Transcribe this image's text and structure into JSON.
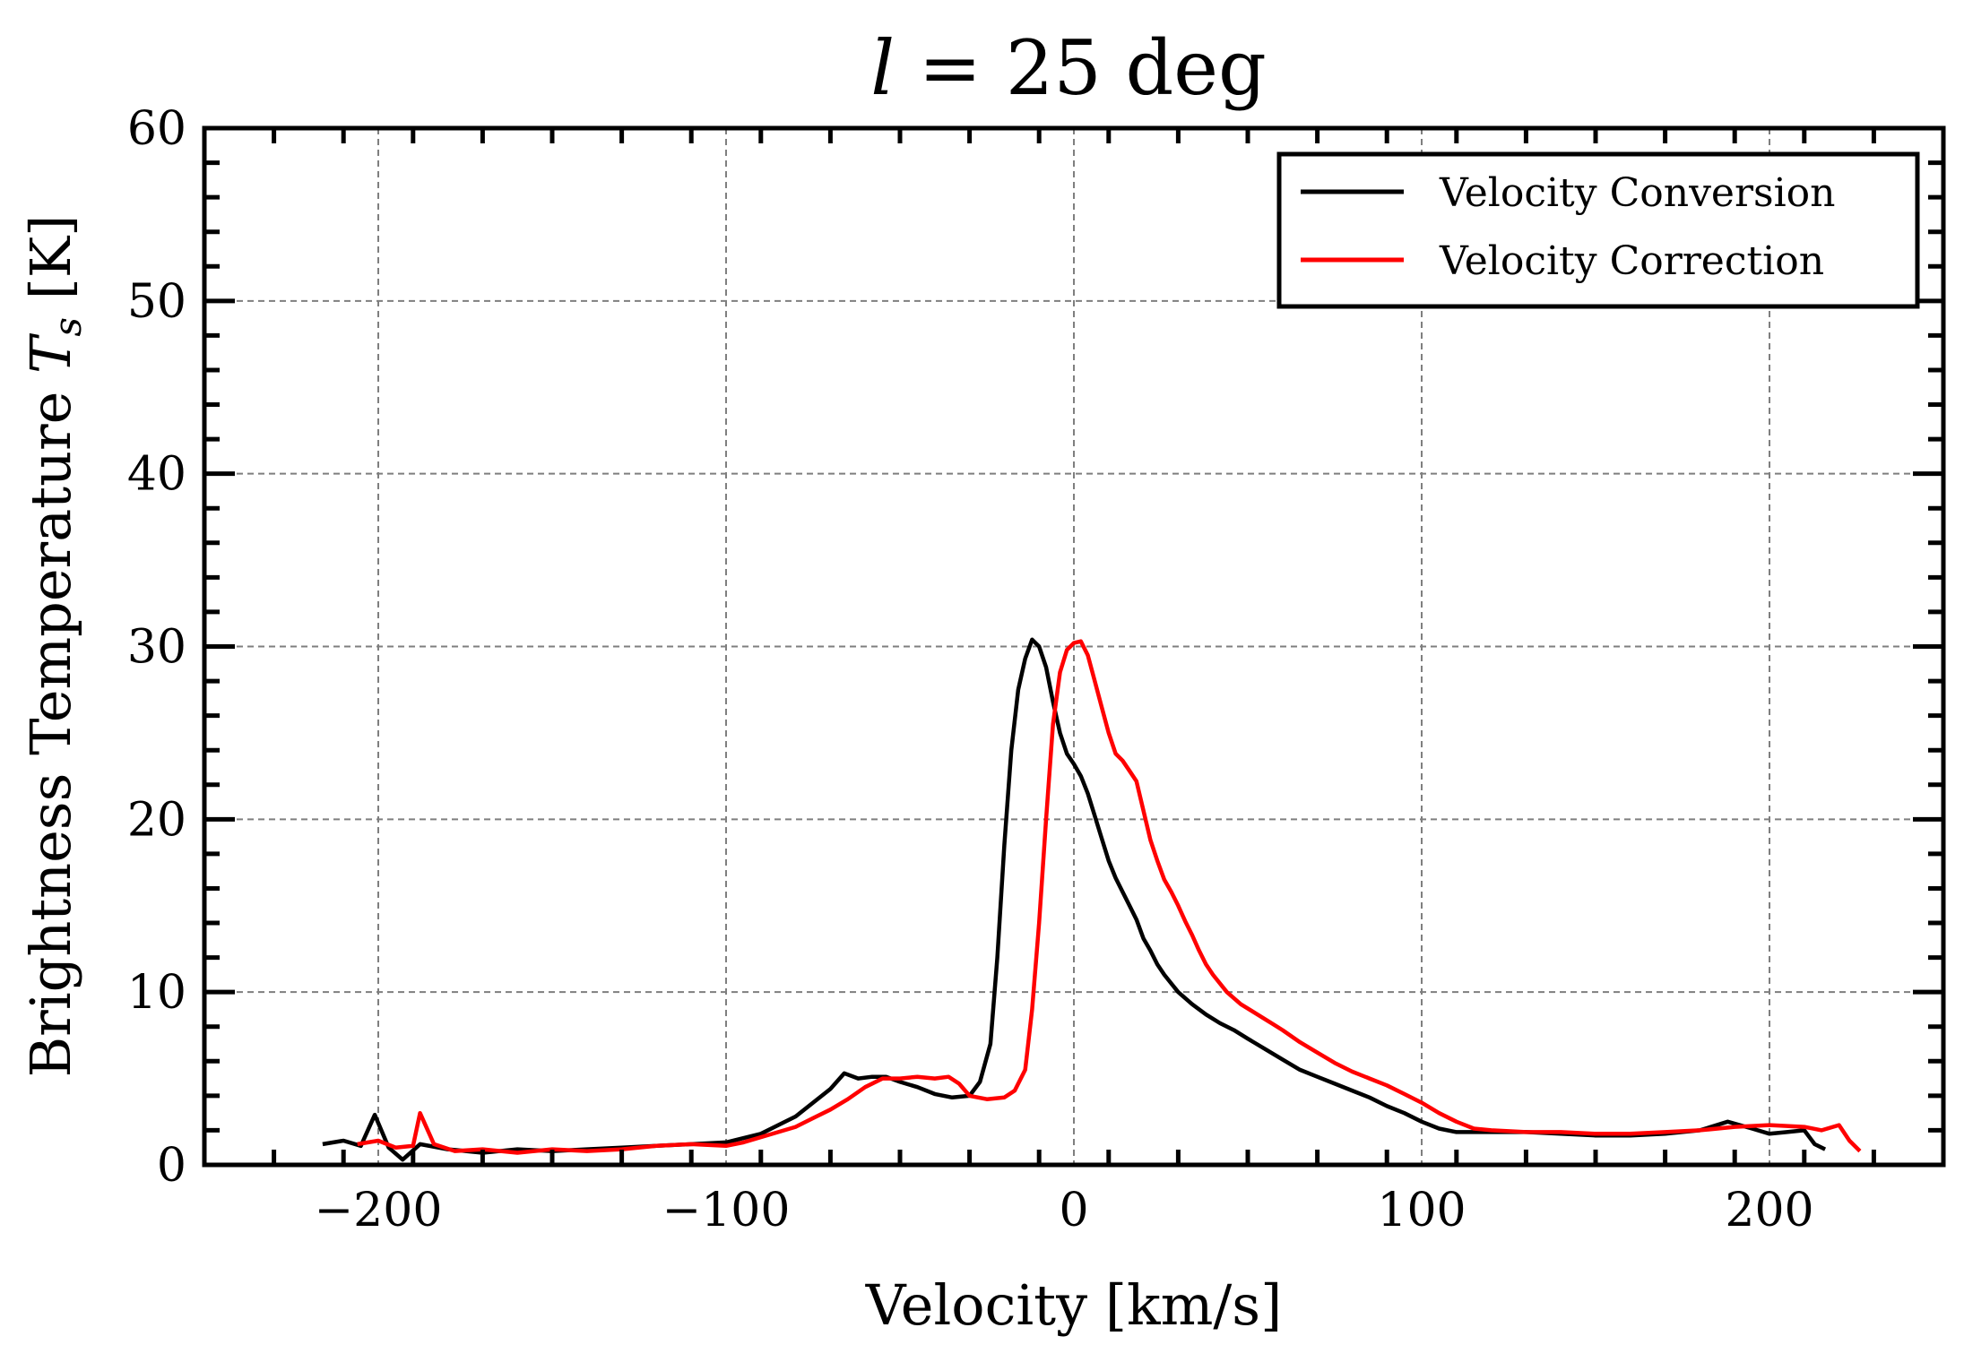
{
  "colors": {
    "background": "#ffffff",
    "grid": "#7f7f7f",
    "axis": "#000000",
    "conversion": "#000000",
    "correction": "#ff0000"
  },
  "chart_data": {
    "type": "line",
    "title": "l = 25 deg",
    "xlabel": "Velocity [km/s]",
    "ylabel": "Brightness Temperature T_s [K]",
    "xlim": [
      -250,
      250
    ],
    "ylim": [
      0,
      60
    ],
    "x_ticks": [
      -200,
      -100,
      0,
      100,
      200
    ],
    "x_tick_labels": [
      "−200",
      "−100",
      "0",
      "100",
      "200"
    ],
    "y_ticks": [
      0,
      10,
      20,
      30,
      40,
      50,
      60
    ],
    "y_tick_labels": [
      "0",
      "10",
      "20",
      "30",
      "40",
      "50",
      "60"
    ],
    "grid": true,
    "legend_position": "top-right",
    "series": [
      {
        "name": "Velocity Conversion",
        "color": "#000000",
        "points": [
          [
            -216,
            1.2
          ],
          [
            -210,
            1.4
          ],
          [
            -205,
            1.1
          ],
          [
            -201,
            2.9
          ],
          [
            -197,
            1.0
          ],
          [
            -193,
            0.3
          ],
          [
            -188,
            1.2
          ],
          [
            -180,
            0.9
          ],
          [
            -170,
            0.7
          ],
          [
            -160,
            0.9
          ],
          [
            -150,
            0.8
          ],
          [
            -140,
            0.9
          ],
          [
            -130,
            1.0
          ],
          [
            -120,
            1.1
          ],
          [
            -110,
            1.2
          ],
          [
            -100,
            1.3
          ],
          [
            -90,
            1.8
          ],
          [
            -85,
            2.3
          ],
          [
            -80,
            2.8
          ],
          [
            -75,
            3.6
          ],
          [
            -70,
            4.4
          ],
          [
            -66,
            5.3
          ],
          [
            -62,
            5.0
          ],
          [
            -58,
            5.1
          ],
          [
            -54,
            5.1
          ],
          [
            -50,
            4.8
          ],
          [
            -45,
            4.5
          ],
          [
            -40,
            4.1
          ],
          [
            -35,
            3.9
          ],
          [
            -30,
            4.0
          ],
          [
            -27,
            4.8
          ],
          [
            -24,
            7.0
          ],
          [
            -22,
            12.0
          ],
          [
            -20,
            18.5
          ],
          [
            -18,
            24.0
          ],
          [
            -16,
            27.5
          ],
          [
            -14,
            29.3
          ],
          [
            -12,
            30.4
          ],
          [
            -10,
            30.0
          ],
          [
            -8,
            28.8
          ],
          [
            -6,
            26.8
          ],
          [
            -4,
            25.0
          ],
          [
            -2,
            23.8
          ],
          [
            0,
            23.2
          ],
          [
            2,
            22.5
          ],
          [
            4,
            21.5
          ],
          [
            6,
            20.2
          ],
          [
            8,
            18.9
          ],
          [
            10,
            17.6
          ],
          [
            12,
            16.6
          ],
          [
            14,
            15.8
          ],
          [
            16,
            15.0
          ],
          [
            18,
            14.2
          ],
          [
            20,
            13.1
          ],
          [
            22,
            12.4
          ],
          [
            24,
            11.6
          ],
          [
            26,
            11.0
          ],
          [
            28,
            10.5
          ],
          [
            30,
            10.0
          ],
          [
            34,
            9.3
          ],
          [
            38,
            8.7
          ],
          [
            42,
            8.2
          ],
          [
            46,
            7.8
          ],
          [
            50,
            7.3
          ],
          [
            55,
            6.7
          ],
          [
            60,
            6.1
          ],
          [
            65,
            5.5
          ],
          [
            70,
            5.1
          ],
          [
            75,
            4.7
          ],
          [
            80,
            4.3
          ],
          [
            85,
            3.9
          ],
          [
            90,
            3.4
          ],
          [
            95,
            3.0
          ],
          [
            100,
            2.5
          ],
          [
            105,
            2.1
          ],
          [
            110,
            1.9
          ],
          [
            120,
            1.9
          ],
          [
            130,
            1.9
          ],
          [
            140,
            1.8
          ],
          [
            150,
            1.7
          ],
          [
            160,
            1.7
          ],
          [
            170,
            1.8
          ],
          [
            180,
            2.0
          ],
          [
            188,
            2.5
          ],
          [
            195,
            2.1
          ],
          [
            200,
            1.8
          ],
          [
            205,
            1.9
          ],
          [
            210,
            2.0
          ],
          [
            213,
            1.2
          ],
          [
            216,
            0.9
          ]
        ]
      },
      {
        "name": "Velocity Correction",
        "color": "#ff0000",
        "points": [
          [
            -206,
            1.2
          ],
          [
            -200,
            1.4
          ],
          [
            -195,
            1.0
          ],
          [
            -190,
            1.1
          ],
          [
            -188,
            3.0
          ],
          [
            -184,
            1.2
          ],
          [
            -178,
            0.8
          ],
          [
            -170,
            0.9
          ],
          [
            -160,
            0.7
          ],
          [
            -150,
            0.9
          ],
          [
            -140,
            0.8
          ],
          [
            -130,
            0.9
          ],
          [
            -120,
            1.1
          ],
          [
            -110,
            1.2
          ],
          [
            -100,
            1.1
          ],
          [
            -95,
            1.3
          ],
          [
            -90,
            1.6
          ],
          [
            -85,
            1.9
          ],
          [
            -80,
            2.2
          ],
          [
            -75,
            2.7
          ],
          [
            -70,
            3.2
          ],
          [
            -65,
            3.8
          ],
          [
            -60,
            4.5
          ],
          [
            -55,
            5.0
          ],
          [
            -50,
            5.0
          ],
          [
            -45,
            5.1
          ],
          [
            -40,
            5.0
          ],
          [
            -36,
            5.1
          ],
          [
            -33,
            4.7
          ],
          [
            -30,
            4.0
          ],
          [
            -25,
            3.8
          ],
          [
            -20,
            3.9
          ],
          [
            -17,
            4.3
          ],
          [
            -14,
            5.5
          ],
          [
            -12,
            9.0
          ],
          [
            -10,
            14.0
          ],
          [
            -8,
            20.0
          ],
          [
            -6,
            25.5
          ],
          [
            -4,
            28.5
          ],
          [
            -2,
            29.8
          ],
          [
            0,
            30.2
          ],
          [
            2,
            30.3
          ],
          [
            4,
            29.5
          ],
          [
            6,
            28.0
          ],
          [
            8,
            26.5
          ],
          [
            10,
            25.0
          ],
          [
            12,
            23.8
          ],
          [
            14,
            23.4
          ],
          [
            16,
            22.8
          ],
          [
            18,
            22.2
          ],
          [
            20,
            20.5
          ],
          [
            22,
            18.8
          ],
          [
            24,
            17.6
          ],
          [
            26,
            16.5
          ],
          [
            28,
            15.8
          ],
          [
            30,
            15.0
          ],
          [
            32,
            14.1
          ],
          [
            34,
            13.3
          ],
          [
            36,
            12.4
          ],
          [
            38,
            11.6
          ],
          [
            40,
            11.0
          ],
          [
            44,
            10.0
          ],
          [
            48,
            9.3
          ],
          [
            52,
            8.8
          ],
          [
            56,
            8.3
          ],
          [
            60,
            7.8
          ],
          [
            65,
            7.1
          ],
          [
            70,
            6.5
          ],
          [
            75,
            5.9
          ],
          [
            80,
            5.4
          ],
          [
            85,
            5.0
          ],
          [
            90,
            4.6
          ],
          [
            95,
            4.1
          ],
          [
            100,
            3.6
          ],
          [
            105,
            3.0
          ],
          [
            110,
            2.5
          ],
          [
            115,
            2.1
          ],
          [
            120,
            2.0
          ],
          [
            130,
            1.9
          ],
          [
            140,
            1.9
          ],
          [
            150,
            1.8
          ],
          [
            160,
            1.8
          ],
          [
            170,
            1.9
          ],
          [
            180,
            2.0
          ],
          [
            190,
            2.2
          ],
          [
            200,
            2.3
          ],
          [
            210,
            2.2
          ],
          [
            215,
            2.0
          ],
          [
            220,
            2.3
          ],
          [
            223,
            1.4
          ],
          [
            226,
            0.8
          ]
        ]
      }
    ]
  }
}
